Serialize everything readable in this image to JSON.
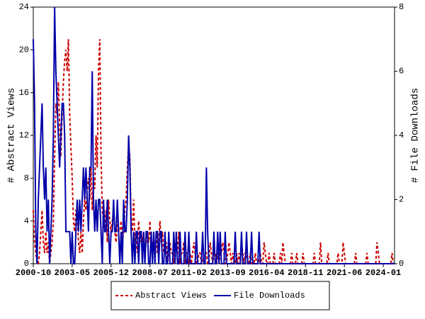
{
  "chart_data": {
    "type": "line",
    "x": [
      "2000-10",
      "2000-11",
      "2000-12",
      "2001-01",
      "2001-02",
      "2001-03",
      "2001-04",
      "2001-05",
      "2001-06",
      "2001-07",
      "2001-08",
      "2001-09",
      "2001-10",
      "2001-11",
      "2001-12",
      "2002-01",
      "2002-02",
      "2002-03",
      "2002-04",
      "2002-05",
      "2002-06",
      "2002-07",
      "2002-08",
      "2002-09",
      "2002-10",
      "2002-11",
      "2002-12",
      "2003-01",
      "2003-02",
      "2003-03",
      "2003-04",
      "2003-05",
      "2003-06",
      "2003-07",
      "2003-08",
      "2003-09",
      "2003-10",
      "2003-11",
      "2003-12",
      "2004-01",
      "2004-02",
      "2004-03",
      "2004-04",
      "2004-05",
      "2004-06",
      "2004-07",
      "2004-08",
      "2004-09",
      "2004-10",
      "2004-11",
      "2004-12",
      "2005-01",
      "2005-02",
      "2005-03",
      "2005-04",
      "2005-05",
      "2005-06",
      "2005-07",
      "2005-08",
      "2005-09",
      "2005-10",
      "2005-11",
      "2005-12",
      "2006-01",
      "2006-02",
      "2006-03",
      "2006-04",
      "2006-05",
      "2006-06",
      "2006-07",
      "2006-08",
      "2006-09",
      "2006-10",
      "2006-11",
      "2006-12",
      "2007-01",
      "2007-02",
      "2007-03",
      "2007-04",
      "2007-05",
      "2007-06",
      "2007-07",
      "2007-08",
      "2007-09",
      "2007-10",
      "2007-11",
      "2007-12",
      "2008-01",
      "2008-02",
      "2008-03",
      "2008-04",
      "2008-05",
      "2008-06",
      "2008-07",
      "2008-08",
      "2008-09",
      "2008-10",
      "2008-11",
      "2008-12",
      "2009-01",
      "2009-02",
      "2009-03",
      "2009-04",
      "2009-05",
      "2009-06",
      "2009-07",
      "2009-08",
      "2009-09",
      "2009-10",
      "2009-11",
      "2009-12",
      "2010-01",
      "2010-02",
      "2010-03",
      "2010-04",
      "2010-05",
      "2010-06",
      "2010-07",
      "2010-08",
      "2010-09",
      "2010-10",
      "2010-11",
      "2010-12",
      "2011-01",
      "2011-02",
      "2011-03",
      "2011-04",
      "2011-05",
      "2011-06",
      "2011-07",
      "2011-08",
      "2011-09",
      "2011-10",
      "2011-11",
      "2011-12",
      "2012-01",
      "2012-02",
      "2012-03",
      "2012-04",
      "2012-05",
      "2012-06",
      "2012-07",
      "2012-08",
      "2012-09",
      "2012-10",
      "2012-11",
      "2012-12",
      "2013-01",
      "2013-02",
      "2013-03",
      "2013-04",
      "2013-05",
      "2013-06",
      "2013-07",
      "2013-08",
      "2013-09",
      "2013-10",
      "2013-11",
      "2013-12",
      "2014-01",
      "2014-02",
      "2014-03",
      "2014-04",
      "2014-05",
      "2014-06",
      "2014-07",
      "2014-08",
      "2014-09",
      "2014-10",
      "2014-11",
      "2014-12",
      "2015-01",
      "2015-02",
      "2015-03",
      "2015-04",
      "2015-05",
      "2015-06",
      "2015-07",
      "2015-08",
      "2015-09",
      "2015-10",
      "2015-11",
      "2015-12",
      "2016-01",
      "2016-02",
      "2016-03",
      "2016-04",
      "2016-05",
      "2016-06",
      "2016-07",
      "2016-08",
      "2016-09",
      "2016-10",
      "2016-11",
      "2016-12",
      "2017-01",
      "2017-02",
      "2017-03",
      "2017-04",
      "2017-05",
      "2017-06",
      "2017-07",
      "2017-08",
      "2017-09",
      "2017-10",
      "2017-11",
      "2017-12",
      "2018-01",
      "2018-02",
      "2018-03",
      "2018-04",
      "2018-05",
      "2018-06",
      "2018-07",
      "2018-08",
      "2018-09",
      "2018-10",
      "2018-11",
      "2018-12",
      "2019-01",
      "2019-02",
      "2019-03",
      "2019-04",
      "2019-05",
      "2019-06",
      "2019-07",
      "2019-08",
      "2019-09",
      "2019-10",
      "2019-11",
      "2019-12",
      "2020-01",
      "2020-02",
      "2020-03",
      "2020-04",
      "2020-05",
      "2020-06",
      "2020-07",
      "2020-08",
      "2020-09",
      "2020-10",
      "2020-11",
      "2020-12",
      "2021-01",
      "2021-02",
      "2021-03",
      "2021-04",
      "2021-05",
      "2021-06",
      "2021-07",
      "2021-08",
      "2021-09",
      "2021-10",
      "2021-11",
      "2021-12",
      "2022-01",
      "2022-02",
      "2022-03",
      "2022-04",
      "2022-05",
      "2022-06",
      "2022-07",
      "2022-08",
      "2022-09",
      "2022-10",
      "2022-11",
      "2022-12",
      "2023-01",
      "2023-02",
      "2023-03",
      "2023-04",
      "2023-05",
      "2023-06",
      "2023-07",
      "2023-08",
      "2023-09",
      "2023-10",
      "2023-11",
      "2023-12",
      "2024-01",
      "2024-02",
      "2024-03",
      "2024-04",
      "2024-05",
      "2024-06",
      "2024-07",
      "2024-08",
      "2024-09",
      "2024-10"
    ],
    "xticks": [
      "2000-10",
      "2003-05",
      "2005-12",
      "2008-07",
      "2011-02",
      "2013-09",
      "2016-04",
      "2018-11",
      "2021-06",
      "2024-01"
    ],
    "ylabel": "# Abstract Views",
    "y2label": "# File Downloads",
    "ylim": [
      0,
      24
    ],
    "yticks": [
      0,
      4,
      8,
      12,
      16,
      20,
      24
    ],
    "y2lim": [
      0,
      8
    ],
    "y2ticks": [
      0,
      2,
      4,
      6,
      8
    ],
    "legend": "bottom",
    "series": [
      {
        "name": "Abstract Views",
        "color": "#cc0000",
        "dashed": true,
        "values": [
          5,
          2,
          1,
          0,
          0,
          1,
          3,
          5,
          2,
          1,
          3,
          1,
          2,
          0,
          1,
          2,
          4,
          10,
          15,
          14,
          17,
          13,
          10,
          14,
          17,
          19,
          20,
          18,
          21,
          14,
          11,
          8,
          4,
          3,
          5,
          5,
          2,
          1,
          3,
          1,
          4,
          6,
          5,
          7,
          8,
          6,
          9,
          5,
          8,
          7,
          12,
          9,
          18,
          21,
          10,
          5,
          4,
          3,
          5,
          2,
          6,
          4,
          3,
          4,
          5,
          3,
          2,
          4,
          3,
          3,
          4,
          2,
          3,
          5,
          6,
          9,
          11,
          10,
          4,
          3,
          6,
          2,
          3,
          1,
          4,
          2,
          3,
          2,
          3,
          1,
          2,
          3,
          2,
          4,
          1,
          2,
          2,
          1,
          3,
          1,
          2,
          4,
          2,
          3,
          1,
          1,
          2,
          0,
          1,
          2,
          1,
          1,
          0,
          2,
          1,
          1,
          3,
          0,
          1,
          1,
          2,
          0,
          1,
          1,
          0,
          1,
          0,
          1,
          2,
          1,
          0,
          0,
          1,
          1,
          0,
          0,
          1,
          1,
          1,
          0,
          0,
          2,
          1,
          0,
          1,
          1,
          0,
          1,
          0,
          1,
          1,
          2,
          1,
          0,
          0,
          1,
          2,
          1,
          0,
          1,
          0,
          0,
          1,
          0,
          1,
          0,
          2,
          1,
          0,
          1,
          1,
          0,
          0,
          1,
          0,
          0,
          0,
          1,
          0,
          0,
          0,
          1,
          0,
          0,
          2,
          1,
          0,
          0,
          1,
          0,
          0,
          0,
          1,
          0,
          0,
          0,
          0,
          1,
          0,
          2,
          1,
          0,
          0,
          0,
          0,
          0,
          1,
          0,
          0,
          0,
          1,
          0,
          0,
          0,
          0,
          1,
          0,
          0,
          0,
          0,
          0,
          0,
          0,
          0,
          1,
          0,
          0,
          0,
          0,
          2,
          0,
          0,
          0,
          0,
          0,
          1,
          0,
          0,
          0,
          0,
          0,
          0,
          0,
          1,
          0,
          0,
          0,
          2,
          1,
          0,
          0,
          0,
          0,
          0,
          0,
          0,
          0,
          1,
          0,
          0,
          0,
          0,
          0,
          0,
          0,
          0,
          1,
          0,
          0,
          0,
          0,
          0,
          0,
          0,
          2,
          1,
          0,
          0,
          0,
          0,
          0,
          0,
          0,
          0,
          0,
          0,
          1,
          0,
          0
        ]
      },
      {
        "name": "File Downloads",
        "color": "#0000aa",
        "axis": "y2",
        "values": [
          7,
          5,
          1,
          0,
          2,
          3,
          4,
          5,
          3,
          2,
          3,
          1,
          2,
          0,
          1,
          2,
          4,
          8,
          6,
          5,
          4,
          3,
          4,
          5,
          5,
          4,
          1,
          1,
          1,
          1,
          0,
          1,
          0,
          0,
          1,
          2,
          1,
          2,
          1,
          2,
          3,
          2,
          3,
          2,
          1,
          3,
          3,
          6,
          2,
          1,
          2,
          1,
          2,
          2,
          1,
          0,
          2,
          1,
          1,
          2,
          1,
          0,
          1,
          1,
          2,
          1,
          1,
          2,
          1,
          0,
          1,
          0,
          2,
          1,
          1,
          2,
          4,
          3,
          1,
          0,
          1,
          0,
          1,
          1,
          0,
          1,
          1,
          0,
          1,
          0,
          1,
          1,
          0,
          0,
          1,
          0,
          1,
          0,
          1,
          1,
          0,
          1,
          1,
          0,
          0,
          1,
          0,
          0,
          1,
          0,
          0,
          0,
          1,
          0,
          1,
          0,
          0,
          1,
          0,
          0,
          0,
          1,
          0,
          0,
          1,
          0,
          0,
          0,
          0,
          0,
          1,
          0,
          0,
          0,
          0,
          1,
          0,
          0,
          3,
          1,
          0,
          0,
          0,
          0,
          1,
          0,
          0,
          1,
          0,
          1,
          0,
          0,
          0,
          1,
          0,
          0,
          0,
          0,
          0,
          0,
          0,
          1,
          0,
          0,
          0,
          0,
          1,
          0,
          0,
          0,
          1,
          0,
          0,
          0,
          1,
          0,
          0,
          0,
          0,
          0,
          1,
          0,
          0,
          0,
          0,
          0,
          0,
          0,
          0,
          0,
          0,
          0,
          0,
          0,
          0,
          0,
          0,
          0,
          0,
          0,
          0,
          0,
          0,
          0,
          0,
          0,
          0,
          0,
          0,
          0,
          0,
          0,
          0,
          0,
          0,
          0,
          0,
          0,
          0,
          0,
          0,
          0,
          0,
          0,
          0,
          0,
          0,
          0,
          0,
          0,
          0,
          0,
          0,
          0,
          0,
          0,
          0,
          0,
          0,
          0,
          0,
          0,
          0,
          0,
          0,
          0,
          0,
          0,
          0,
          0,
          0,
          0,
          0,
          0,
          0,
          0,
          0,
          0,
          0,
          0,
          0,
          0,
          0,
          0,
          0,
          0,
          0,
          0,
          0,
          0,
          0,
          0,
          0,
          0,
          0,
          0,
          0,
          0,
          0,
          0,
          0,
          0,
          0,
          0,
          0,
          0,
          0,
          0,
          0
        ]
      }
    ]
  }
}
